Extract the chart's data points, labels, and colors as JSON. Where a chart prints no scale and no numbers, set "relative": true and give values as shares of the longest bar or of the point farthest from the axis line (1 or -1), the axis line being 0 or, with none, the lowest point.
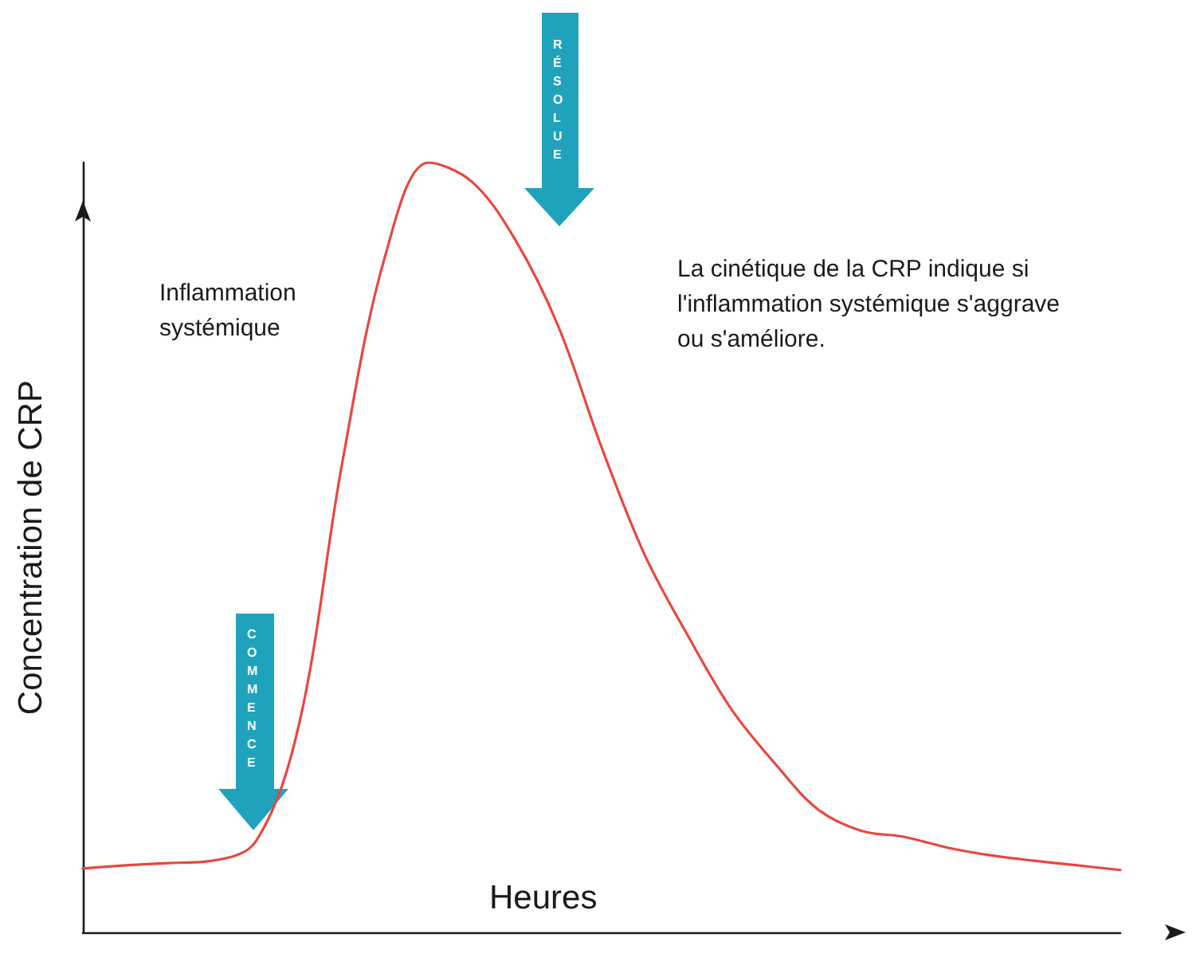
{
  "chart_data": {
    "type": "line",
    "relative": true,
    "xlabel": "Heures",
    "ylabel": "Concentration de CRP",
    "categories": [
      null,
      null,
      null,
      null,
      null,
      null,
      null,
      null,
      null,
      null,
      null,
      null,
      null,
      null,
      null,
      null,
      null,
      null,
      null,
      null,
      null,
      null,
      null,
      null,
      null
    ],
    "series": [
      {
        "color": "#e8473f",
        "values": [
          0.083,
          0.087,
          0.09,
          0.093,
          0.118,
          0.27,
          0.61,
          0.88,
          1,
          0.975,
          0.9,
          0.787,
          0.63,
          0.49,
          0.385,
          0.29,
          0.22,
          0.16,
          0.132,
          0.124,
          0.11,
          0.1,
          0.093,
          0.087,
          0.081
        ]
      }
    ],
    "annotations": [
      "Inflammation systémique",
      "La cinétique de la CRP indique si l'inflammation systémique s'aggrave ou s'améliore.",
      "COMMENCE",
      "RÉSOLUE"
    ],
    "marker": "none",
    "line_style": "solid",
    "grid": false
  }
}
